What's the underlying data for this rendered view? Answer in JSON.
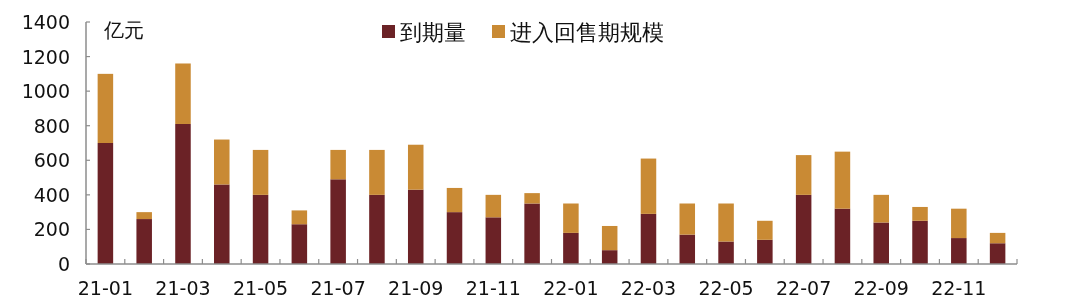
{
  "chart_data": {
    "type": "bar",
    "stacked": true,
    "ylabel": "亿元",
    "legend": "top",
    "categories": [
      "21-01",
      null,
      "21-03",
      null,
      "21-05",
      null,
      "21-07",
      null,
      "21-09",
      null,
      "21-11",
      null,
      "22-01",
      null,
      "22-03",
      null,
      "22-05",
      null,
      "22-07",
      null,
      "22-09",
      null,
      "22-11",
      null
    ],
    "ylim": [
      0,
      1400
    ],
    "yticks": [
      0,
      200,
      400,
      600,
      800,
      1000,
      1200,
      1400
    ],
    "series": [
      {
        "name": "到期量",
        "color": "#6b2226",
        "values": [
          700,
          260,
          810,
          460,
          400,
          230,
          490,
          400,
          430,
          300,
          270,
          350,
          180,
          80,
          290,
          170,
          130,
          140,
          400,
          320,
          240,
          250,
          150,
          120
        ]
      },
      {
        "name": "进入回售期规模",
        "color": "#c98a34",
        "values": [
          400,
          40,
          350,
          260,
          260,
          80,
          170,
          260,
          260,
          140,
          130,
          60,
          170,
          140,
          320,
          180,
          220,
          110,
          230,
          330,
          160,
          80,
          170,
          60
        ]
      }
    ]
  }
}
